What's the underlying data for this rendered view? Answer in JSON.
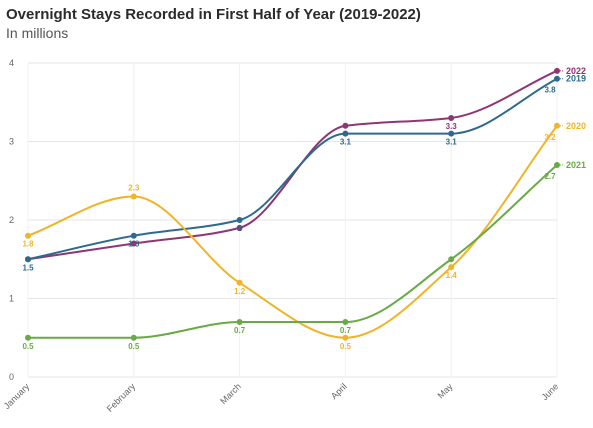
{
  "chart_data": {
    "type": "line",
    "title": "Overnight Stays Recorded in First Half of Year (2019-2022)",
    "subtitle": "In millions",
    "categories": [
      "January",
      "February",
      "March",
      "April",
      "May",
      "June"
    ],
    "ylim": [
      0,
      4
    ],
    "yticks": [
      "0",
      "1",
      "2",
      "3",
      "4"
    ],
    "grid": true,
    "legend": "labels at line ends (right)",
    "series": [
      {
        "name": "2022",
        "color": "#8e3574",
        "values": [
          1.5,
          1.7,
          1.9,
          3.2,
          3.3,
          3.9
        ],
        "labels": [
          "",
          "",
          "",
          "",
          "3.3",
          ""
        ]
      },
      {
        "name": "2019",
        "color": "#2e6a8e",
        "values": [
          1.5,
          1.8,
          2.0,
          3.1,
          3.1,
          3.8
        ],
        "labels": [
          "1.5",
          "1.8",
          "2",
          "3.1",
          "3.1",
          "3.8"
        ]
      },
      {
        "name": "2020",
        "color": "#f0b429",
        "values": [
          1.8,
          2.3,
          1.2,
          0.5,
          1.4,
          3.2
        ],
        "labels": [
          "1.8",
          "2.3",
          "1.2",
          "0.5",
          "1.4",
          "3.2"
        ]
      },
      {
        "name": "2021",
        "color": "#6aaa46",
        "values": [
          0.5,
          0.5,
          0.7,
          0.7,
          1.5,
          2.7
        ],
        "labels": [
          "0.5",
          "0.5",
          "0.7",
          "0.7",
          "",
          "2.7"
        ]
      }
    ]
  }
}
